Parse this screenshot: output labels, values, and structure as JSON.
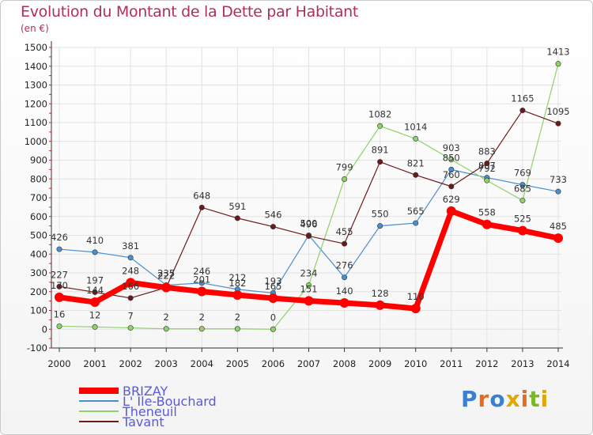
{
  "title": "Evolution du Montant de la Dette par Habitant",
  "subtitle": "(en €)",
  "logo": {
    "letters": [
      "P",
      "r",
      "o",
      "x",
      "i",
      "t",
      "i"
    ],
    "colors": [
      "#3a7fd0",
      "#e86c1f",
      "#3a7fd0",
      "#e0a800",
      "#e86c1f",
      "#7ab82a",
      "#e0a800"
    ]
  },
  "chart_data": {
    "type": "line",
    "title": "Evolution du Montant de la Dette par Habitant",
    "subtitle": "(en €)",
    "xlabel": "",
    "ylabel": "",
    "x": [
      "2000",
      "2001",
      "2002",
      "2003",
      "2004",
      "2005",
      "2006",
      "2007",
      "2008",
      "2009",
      "2010",
      "2011",
      "2012",
      "2013",
      "2014"
    ],
    "ylim": [
      -100,
      1500
    ],
    "yticks": [
      "-100",
      "0",
      "100",
      "200",
      "300",
      "400",
      "500",
      "600",
      "700",
      "800",
      "900",
      "1000",
      "1100",
      "1200",
      "1300",
      "1400",
      "1500"
    ],
    "grid": true,
    "legend": "bottom-left",
    "series": [
      {
        "name": "BRIZAY",
        "color": "#ff0000",
        "width": 7,
        "values": [
          170,
          144,
          248,
          222,
          201,
          182,
          165,
          151,
          140,
          128,
          110,
          629,
          558,
          525,
          485
        ],
        "labels": [
          "170",
          "144",
          "248",
          "222",
          "201",
          "182",
          "165",
          "151",
          "140",
          "128",
          "110",
          "629",
          "558",
          "525",
          "485"
        ]
      },
      {
        "name": "L' Île-Bouchard",
        "color": "#4a8fcf",
        "width": 1.2,
        "values": [
          426,
          410,
          381,
          235,
          246,
          212,
          193,
          500,
          276,
          550,
          565,
          850,
          807,
          769,
          733
        ],
        "labels": [
          "426",
          "410",
          "381",
          "235",
          "246",
          "212",
          "193",
          "500",
          "276",
          "550",
          "565",
          "850",
          "807",
          "769",
          "733"
        ]
      },
      {
        "name": "Theneuil",
        "color": "#8fd16a",
        "width": 1.2,
        "values": [
          16,
          12,
          7,
          2,
          2,
          2,
          0,
          234,
          799,
          1082,
          1014,
          903,
          792,
          685,
          1413
        ],
        "labels": [
          "16",
          "12",
          "7",
          "2",
          "2",
          "2",
          "0",
          "234",
          "799",
          "1082",
          "1014",
          "903",
          "792",
          "685",
          "1413"
        ]
      },
      {
        "name": "Tavant",
        "color": "#6b1a1a",
        "width": 1.2,
        "values": [
          227,
          197,
          166,
          222,
          648,
          591,
          546,
          496,
          455,
          891,
          821,
          760,
          883,
          1165,
          1095
        ],
        "labels": [
          "227",
          "197",
          "166",
          "222",
          "648",
          "591",
          "546",
          "496",
          "455",
          "891",
          "821",
          "760",
          "883",
          "1165",
          "1095"
        ]
      }
    ]
  }
}
